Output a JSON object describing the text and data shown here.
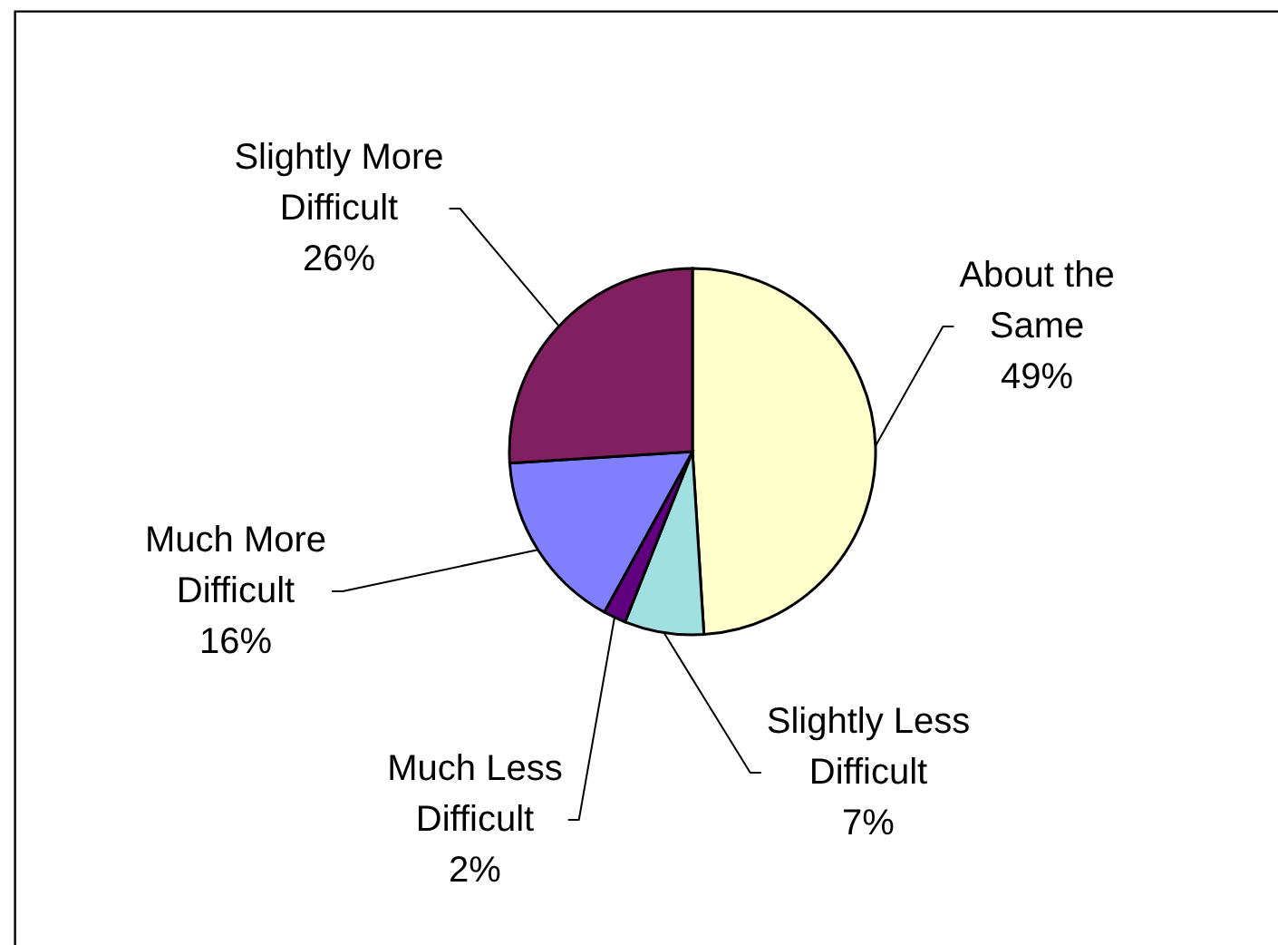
{
  "chart_data": {
    "type": "pie",
    "categories": [
      "About the Same",
      "Slightly Less Difficult",
      "Much Less Difficult",
      "Much More Difficult",
      "Slightly More Difficult"
    ],
    "values": [
      49,
      7,
      2,
      16,
      26
    ],
    "colors": [
      "#ffffcc",
      "#a0e0e0",
      "#600080",
      "#8080ff",
      "#802060"
    ],
    "value_labels": [
      "49%",
      "7%",
      "2%",
      "16%",
      "26%"
    ]
  }
}
